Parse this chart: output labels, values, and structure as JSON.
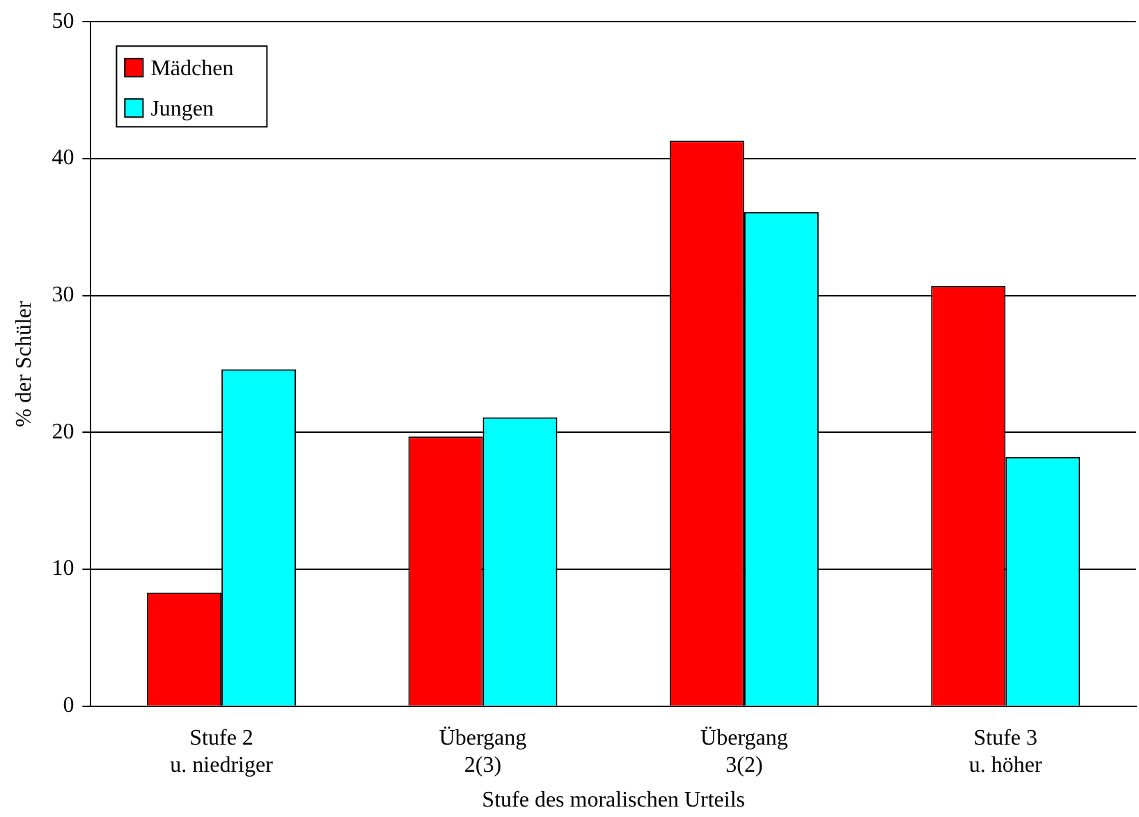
{
  "chart_data": {
    "type": "bar",
    "xlabel": "Stufe des moralischen Urteils",
    "ylabel": "% der Schüler",
    "categories": [
      "Stufe 2\nu. niedriger",
      "Übergang\n2(3)",
      "Übergang\n3(2)",
      "Stufe 3\nu. höher"
    ],
    "series": [
      {
        "name": "Mädchen",
        "color": "#ff0000",
        "values": [
          8.3,
          19.7,
          41.3,
          30.7
        ]
      },
      {
        "name": "Jungen",
        "color": "#00ffff",
        "values": [
          24.6,
          21.1,
          36.1,
          18.2
        ]
      }
    ],
    "ylim": [
      0,
      50
    ],
    "yticks": [
      0,
      10,
      20,
      30,
      40,
      50
    ],
    "grid": "y",
    "legend": "top left"
  }
}
